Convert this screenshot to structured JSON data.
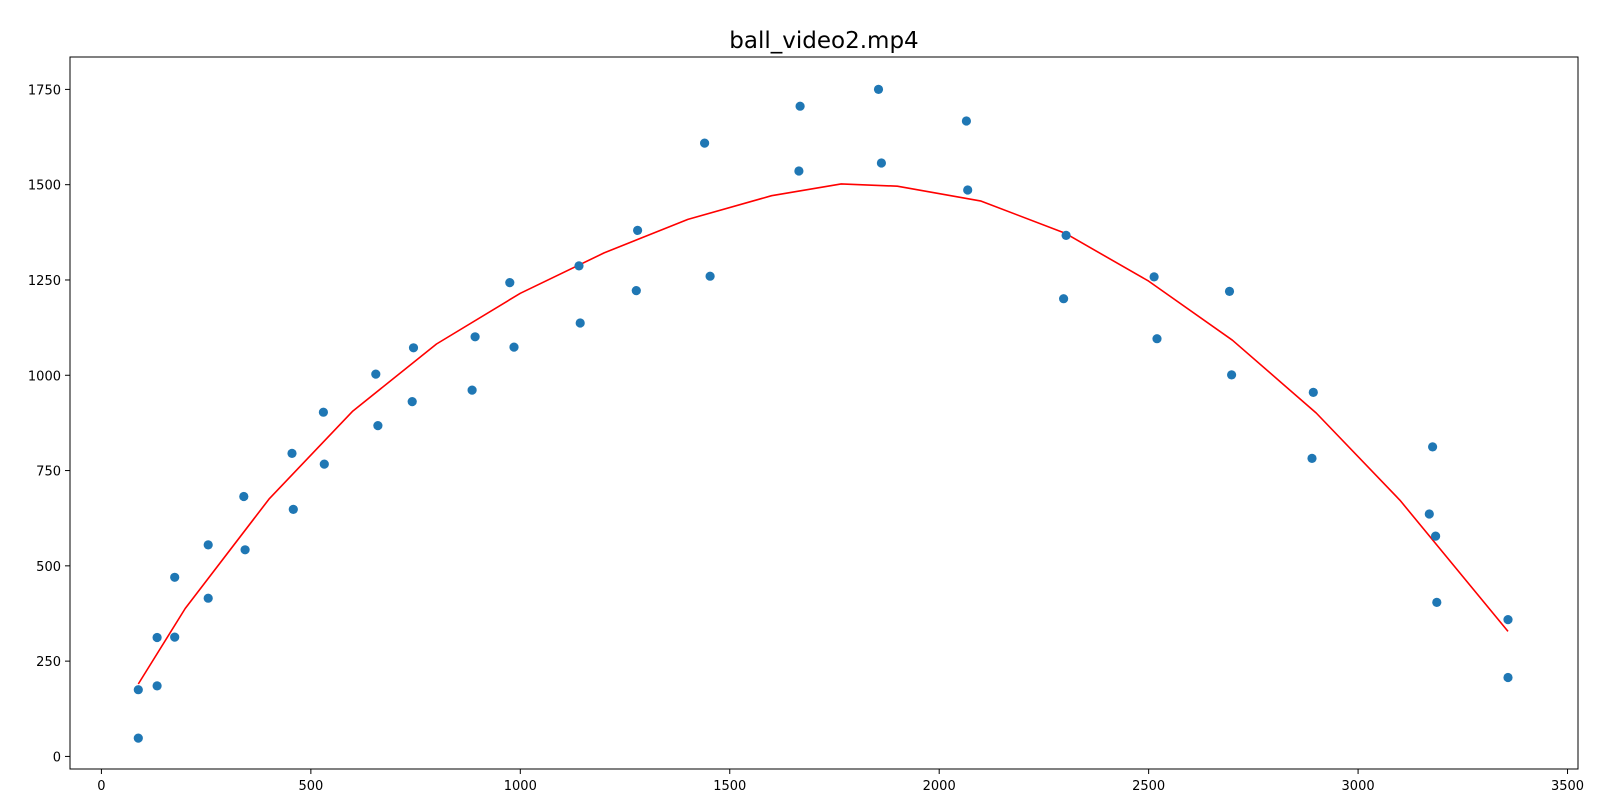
{
  "chart_data": {
    "type": "scatter",
    "title": "ball_video2.mp4",
    "xlabel": "",
    "ylabel": "",
    "xlim": [
      -75,
      3525
    ],
    "ylim": [
      -33,
      1835
    ],
    "xticks": [
      0,
      500,
      1000,
      1500,
      2000,
      2500,
      3000,
      3500
    ],
    "yticks": [
      0,
      250,
      500,
      750,
      1000,
      1250,
      1500,
      1750
    ],
    "grid": false,
    "legend": "none",
    "colors": {
      "points": "#1f77b4",
      "fit": "#ff0000",
      "axes": "#000000"
    },
    "series": [
      {
        "kind": "points",
        "x": [
          88,
          88,
          133,
          133,
          175,
          175,
          255,
          255,
          340,
          343,
          455,
          458,
          530,
          532,
          655,
          660,
          742,
          745,
          885,
          892,
          975,
          985,
          1140,
          1143,
          1277,
          1280,
          1440,
          1453,
          1665,
          1668,
          1855,
          1862,
          2065,
          2068,
          2297,
          2303,
          2513,
          2520,
          2693,
          2698,
          2890,
          2893,
          3170,
          3178,
          3185,
          3188,
          3358,
          3358
        ],
        "y": [
          175,
          48,
          312,
          185,
          470,
          313,
          555,
          415,
          682,
          542,
          795,
          648,
          903,
          767,
          1003,
          868,
          931,
          1072,
          961,
          1101,
          1243,
          1074,
          1287,
          1137,
          1222,
          1380,
          1609,
          1260,
          1536,
          1706,
          1750,
          1557,
          1667,
          1486,
          1201,
          1367,
          1258,
          1096,
          1220,
          1001,
          782,
          955,
          636,
          812,
          578,
          404,
          359,
          207
        ]
      },
      {
        "kind": "line",
        "x": [
          88,
          200,
          400,
          600,
          800,
          1000,
          1200,
          1400,
          1600,
          1766,
          1900,
          2100,
          2300,
          2500,
          2700,
          2900,
          3100,
          3358
        ],
        "y": [
          190,
          388,
          675,
          906,
          1082,
          1215,
          1321,
          1409,
          1471,
          1502,
          1496,
          1457,
          1373,
          1247,
          1092,
          901,
          672,
          328
        ]
      }
    ]
  }
}
